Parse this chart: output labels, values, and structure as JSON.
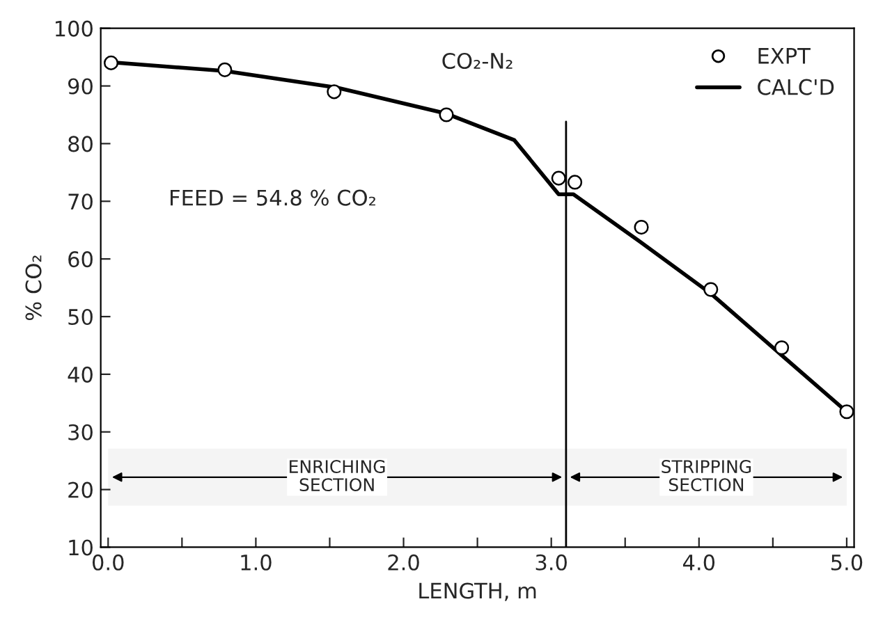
{
  "chart_data": {
    "type": "scatter",
    "title": "CO₂-N₂",
    "xlabel": "LENGTH, m",
    "ylabel": "% CO₂",
    "series": [
      {
        "name": "EXPT",
        "color": "#000000",
        "marker": "circle",
        "x": [
          0.02,
          0.79,
          1.53,
          2.29,
          3.05,
          3.16,
          3.61,
          4.08,
          4.56,
          5.0
        ],
        "values": [
          94,
          92.8,
          89,
          85,
          74,
          73.3,
          65.5,
          54.7,
          44.6,
          33.5
        ]
      },
      {
        "name": "CALC'D",
        "type": "line",
        "color": "#000000",
        "marker": "none",
        "line_style": "solid",
        "x": [
          0.02,
          0.79,
          1.55,
          2.29,
          2.75,
          3.05,
          3.15,
          3.6,
          4.08,
          4.56,
          5.0
        ],
        "values": [
          94.1,
          92.6,
          89.7,
          85.2,
          80.6,
          71.2,
          71.2,
          63,
          54,
          43.3,
          33.5
        ]
      }
    ],
    "annotations": [
      "FEED = 54.8 % CO₂"
    ],
    "ref_lines": [
      {
        "axis": "x",
        "value": 3.1,
        "label": null,
        "color": "#000000"
      }
    ],
    "bands": [
      {
        "axis": "x",
        "from": 0.0,
        "to": 3.1,
        "label": "ENRICHING\nSECTION"
      },
      {
        "axis": "x",
        "from": 3.1,
        "to": 5.0,
        "label": "STRIPPING\nSECTION"
      }
    ],
    "xlim": [
      -0.05,
      5.05
    ],
    "ylim": [
      10,
      100
    ],
    "xticks": [
      {
        "value": 0,
        "label": "0.0"
      },
      {
        "value": 0.5,
        "label": null
      },
      {
        "value": 1,
        "label": "1.0"
      },
      {
        "value": 1.5,
        "label": null
      },
      {
        "value": 2,
        "label": "2.0"
      },
      {
        "value": 2.5,
        "label": null
      },
      {
        "value": 3,
        "label": "3.0"
      },
      {
        "value": 3.5,
        "label": null
      },
      {
        "value": 4,
        "label": "4.0"
      },
      {
        "value": 4.5,
        "label": null
      },
      {
        "value": 5,
        "label": "5.0"
      }
    ],
    "yticks": [
      10,
      20,
      30,
      40,
      50,
      60,
      70,
      80,
      90,
      100
    ],
    "grid": false,
    "legend": "top right"
  }
}
